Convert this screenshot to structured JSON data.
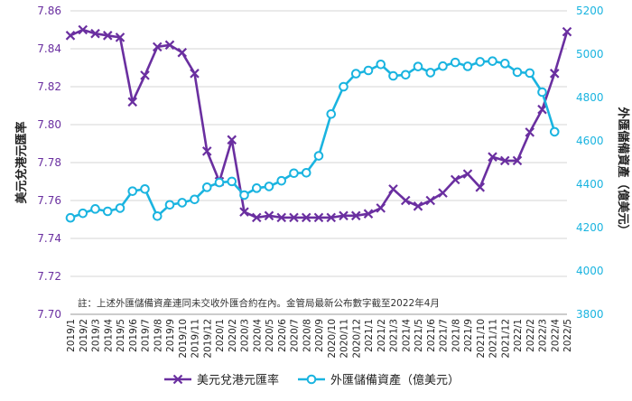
{
  "chart_data": {
    "type": "line",
    "title": "",
    "x": [
      "2019/1",
      "2019/2",
      "2019/3",
      "2019/4",
      "2019/5",
      "2019/6",
      "2019/7",
      "2019/8",
      "2019/9",
      "2019/10",
      "2019/11",
      "2019/12",
      "2020/1",
      "2020/2",
      "2020/3",
      "2020/4",
      "2020/5",
      "2020/6",
      "2020/7",
      "2020/8",
      "2020/9",
      "2020/10",
      "2020/11",
      "2020/12",
      "2021/1",
      "2021/2",
      "2021/3",
      "2021/4",
      "2021/5",
      "2021/6",
      "2021/7",
      "2021/8",
      "2021/9",
      "2021/10",
      "2021/11",
      "2021/12",
      "2022/1",
      "2022/2",
      "2022/3",
      "2022/4",
      "2022/5"
    ],
    "xlabel": "",
    "y_left": {
      "label": "美元兌港元匯率",
      "ylim": [
        7.7,
        7.86
      ],
      "ticks": [
        "7.70",
        "7.72",
        "7.74",
        "7.76",
        "7.78",
        "7.80",
        "7.82",
        "7.84",
        "7.86"
      ],
      "color": "#6a2fa0"
    },
    "y_right": {
      "label": "外匯儲備資產（億美元）",
      "ylim": [
        3800,
        5200
      ],
      "ticks": [
        "3800",
        "4000",
        "4200",
        "4400",
        "4600",
        "4800",
        "5000",
        "5200"
      ],
      "color": "#1ab4e0"
    },
    "series": [
      {
        "name": "美元兌港元匯率",
        "axis": "left",
        "color": "#6a2fa0",
        "marker": "x",
        "values": [
          7.847,
          7.85,
          7.848,
          7.847,
          7.846,
          7.812,
          7.826,
          7.841,
          7.842,
          7.838,
          7.827,
          7.786,
          7.77,
          7.792,
          7.754,
          7.751,
          7.752,
          7.751,
          7.751,
          7.751,
          7.751,
          7.751,
          7.752,
          7.752,
          7.753,
          7.756,
          7.766,
          7.76,
          7.757,
          7.76,
          7.764,
          7.771,
          7.774,
          7.767,
          7.783,
          7.781,
          7.781,
          7.796,
          7.808,
          7.827,
          7.849
        ]
      },
      {
        "name": "外匯儲備資產（億美元）",
        "axis": "right",
        "color": "#1ab4e0",
        "marker": "circle",
        "values": [
          4245,
          4266,
          4286,
          4275,
          4290,
          4368,
          4378,
          4253,
          4305,
          4315,
          4330,
          4386,
          4408,
          4413,
          4350,
          4382,
          4390,
          4416,
          4451,
          4453,
          4531,
          4724,
          4850,
          4910,
          4925,
          4953,
          4900,
          4905,
          4943,
          4915,
          4945,
          4962,
          4944,
          4965,
          4968,
          4957,
          4917,
          4913,
          4825,
          4642,
          null
        ]
      }
    ],
    "legend_position": "bottom",
    "grid": true,
    "annotation": "註：上述外匯儲備資產連同未交收外匯合約在內。金管局最新公布數字截至2022年4月"
  }
}
